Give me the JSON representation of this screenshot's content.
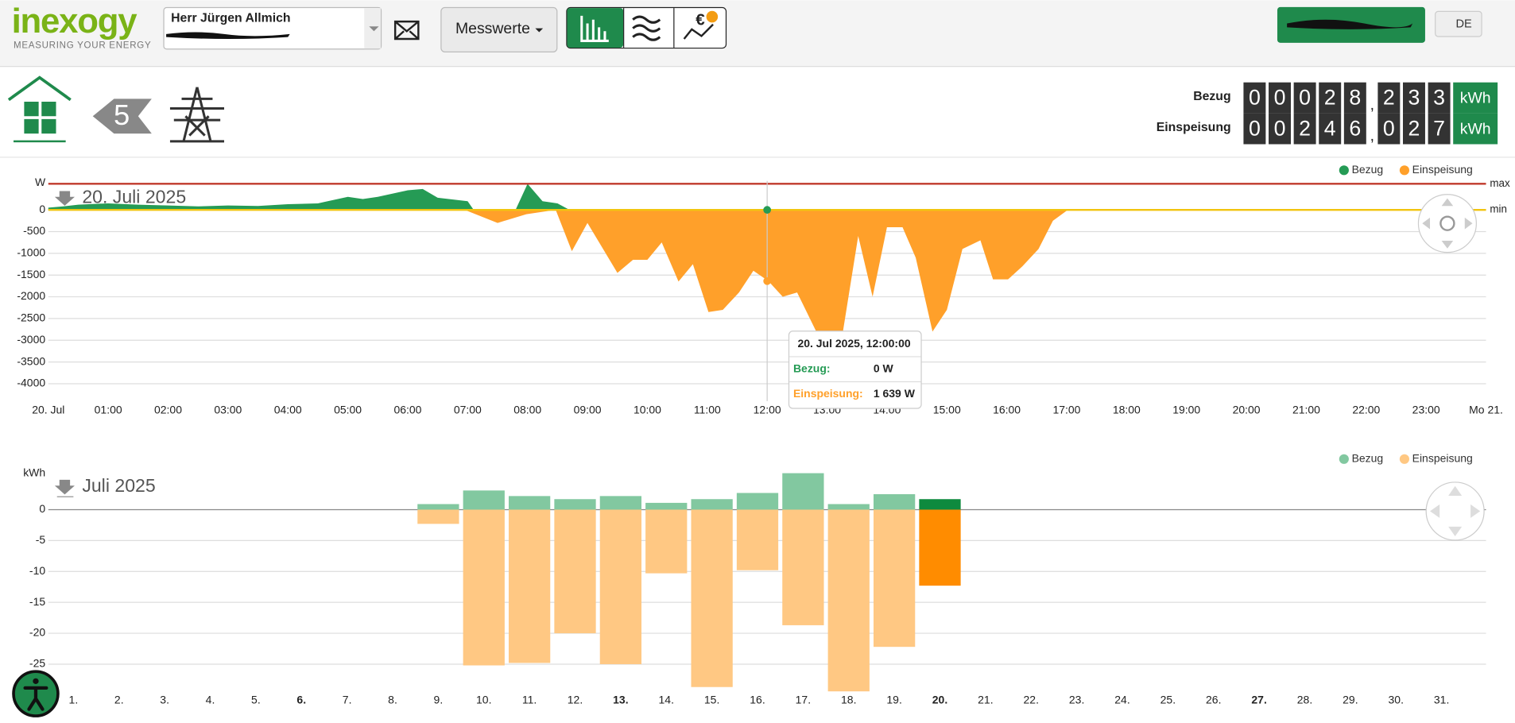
{
  "header": {
    "logo": "inexogy",
    "tagline": "MEASURING YOUR ENERGY",
    "user": "Herr Jürgen Allmich",
    "menu": "Messwerte",
    "language": "DE",
    "badge": "5"
  },
  "meters": [
    {
      "label": "Bezug",
      "integer": [
        "0",
        "0",
        "0",
        "2",
        "8"
      ],
      "separator": ",",
      "decimal": [
        "2",
        "3",
        "3"
      ],
      "unit": "kWh"
    },
    {
      "label": "Einspeisung",
      "integer": [
        "0",
        "0",
        "2",
        "4",
        "6"
      ],
      "separator": ",",
      "decimal": [
        "0",
        "2",
        "7"
      ],
      "unit": "kWh"
    }
  ],
  "tooltip": {
    "title": "20. Jul 2025, 12:00:00",
    "rows": [
      {
        "label": "Bezug:",
        "value": "0 W"
      },
      {
        "label": "Einspeisung:",
        "value": "1 639 W"
      }
    ]
  },
  "chart_data": [
    {
      "type": "area",
      "title": "20. Juli 2025",
      "y_label": "W",
      "ylim": [
        600,
        -4300
      ],
      "yticks": [
        0,
        -500,
        -1000,
        -1500,
        -2000,
        -2500,
        -3000,
        -3500,
        -4000
      ],
      "grid": true,
      "xlim": [
        0,
        24
      ],
      "xticks": [
        {
          "value": 0,
          "label": "20. Jul"
        },
        {
          "value": 1,
          "label": "01:00"
        },
        {
          "value": 2,
          "label": "02:00"
        },
        {
          "value": 3,
          "label": "03:00"
        },
        {
          "value": 4,
          "label": "04:00"
        },
        {
          "value": 5,
          "label": "05:00"
        },
        {
          "value": 6,
          "label": "06:00"
        },
        {
          "value": 7,
          "label": "07:00"
        },
        {
          "value": 8,
          "label": "08:00"
        },
        {
          "value": 9,
          "label": "09:00"
        },
        {
          "value": 10,
          "label": "10:00"
        },
        {
          "value": 11,
          "label": "11:00"
        },
        {
          "value": 12,
          "label": "12:00"
        },
        {
          "value": 13,
          "label": "13:00"
        },
        {
          "value": 14,
          "label": "14:00"
        },
        {
          "value": 15,
          "label": "15:00"
        },
        {
          "value": 16,
          "label": "16:00"
        },
        {
          "value": 17,
          "label": "17:00"
        },
        {
          "value": 18,
          "label": "18:00"
        },
        {
          "value": 19,
          "label": "19:00"
        },
        {
          "value": 20,
          "label": "20:00"
        },
        {
          "value": 21,
          "label": "21:00"
        },
        {
          "value": 22,
          "label": "22:00"
        },
        {
          "value": 23,
          "label": "23:00"
        },
        {
          "value": 24,
          "label": "Mo 21."
        }
      ],
      "limits": [
        {
          "label": "max",
          "value": 600,
          "color": "#c0392b"
        },
        {
          "label": "min",
          "value": 0,
          "color": "#f1c40f"
        }
      ],
      "legend": "top-right",
      "series": [
        {
          "name": "Bezug",
          "color": "#259b55",
          "x": [
            0,
            0.25,
            0.5,
            1,
            1.5,
            2,
            2.5,
            3,
            3.5,
            4,
            4.5,
            5,
            5.25,
            5.5,
            6,
            6.25,
            6.5,
            7,
            7.1,
            7.5,
            7.8,
            8,
            8.25,
            8.5,
            8.7
          ],
          "values": [
            50,
            80,
            120,
            150,
            120,
            100,
            80,
            100,
            90,
            130,
            150,
            300,
            250,
            300,
            450,
            480,
            280,
            200,
            0,
            0,
            0,
            600,
            200,
            150,
            0
          ]
        },
        {
          "name": "Einspeisung",
          "color": "#ffa02a",
          "x": [
            6.95,
            7.5,
            7.98,
            8.47,
            8.74,
            9.0,
            9.5,
            9.76,
            10.0,
            10.24,
            10.52,
            10.76,
            11.02,
            11.26,
            11.53,
            11.77,
            12.02,
            12.26,
            12.5,
            12.82,
            13.23,
            13.52,
            13.76,
            14.0,
            14.26,
            14.48,
            14.76,
            15.0,
            15.26,
            15.56,
            15.77,
            16.02,
            16.26,
            16.53,
            16.77,
            17.02
          ],
          "values": [
            0,
            -300,
            -100,
            0,
            -950,
            -300,
            -1450,
            -1150,
            -1150,
            -750,
            -1650,
            -1250,
            -2350,
            -2300,
            -1900,
            -1400,
            -1639,
            -2000,
            -1900,
            -2800,
            -3100,
            -600,
            -2000,
            -400,
            -400,
            -1100,
            -2800,
            -2300,
            -900,
            -700,
            -1600,
            -1600,
            -1300,
            -900,
            -250,
            0
          ]
        }
      ]
    },
    {
      "type": "bar",
      "title": "Juli 2025",
      "y_label": "kWh",
      "ylim": [
        6,
        -30
      ],
      "yticks": [
        0,
        -5,
        -10,
        -15,
        -20,
        -25
      ],
      "grid": true,
      "legend": "top-right",
      "categories": [
        "1.",
        "2.",
        "3.",
        "4.",
        "5.",
        "6.",
        "7.",
        "8.",
        "9.",
        "10.",
        "11.",
        "12.",
        "13.",
        "14.",
        "15.",
        "16.",
        "17.",
        "18.",
        "19.",
        "20.",
        "21.",
        "22.",
        "23.",
        "24.",
        "25.",
        "26.",
        "27.",
        "28.",
        "29.",
        "30.",
        "31."
      ],
      "weekend_color": "#e02020",
      "weekend": [
        4,
        5,
        11,
        12,
        18,
        19,
        25,
        26
      ],
      "bold": [
        5,
        12,
        19,
        26
      ],
      "current_index": 19,
      "series": [
        {
          "name": "Bezug",
          "color": "#82c8a0",
          "current_color": "#0e8a3e",
          "values": [
            null,
            null,
            null,
            null,
            null,
            null,
            null,
            null,
            0.9,
            3.1,
            2.2,
            1.7,
            2.2,
            1.1,
            1.7,
            2.7,
            5.9,
            0.9,
            2.5,
            1.7,
            null,
            null,
            null,
            null,
            null,
            null,
            null,
            null,
            null,
            null,
            null
          ]
        },
        {
          "name": "Einspeisung",
          "color": "#ffc883",
          "current_color": "#ff8c00",
          "values": [
            null,
            null,
            null,
            null,
            null,
            null,
            null,
            null,
            -2.3,
            -25.2,
            -24.8,
            -20,
            -25,
            -10.3,
            -28.7,
            -9.8,
            -18.7,
            -29.4,
            -22.2,
            -12.3,
            null,
            null,
            null,
            null,
            null,
            null,
            null,
            null,
            null,
            null,
            null
          ]
        }
      ]
    }
  ]
}
